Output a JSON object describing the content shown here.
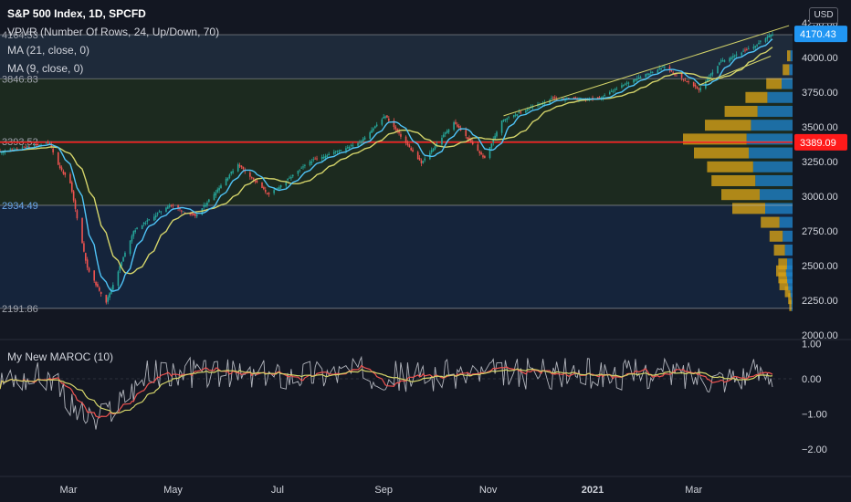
{
  "header": {
    "symbol_title": "S&P 500 Index, 1D, SPCFD",
    "indicators": [
      "VPVR (Number Of Rows, 24, Up/Down, 70)",
      "MA (21, close, 0)",
      "MA (9, close, 0)"
    ],
    "currency": "USD"
  },
  "oscillator": {
    "title": "My New MAROC (10)"
  },
  "colors": {
    "background": "#131722",
    "up": "#26a69a",
    "down": "#ef5350",
    "ma21": "#d4d46a",
    "ma9": "#4fc3f7",
    "hline_red": "#ff1a1a",
    "price_label_blue": "#2196f3",
    "vp_up": "#d4a017",
    "vp_down": "#1e7fc6"
  },
  "chart_data": [
    {
      "type": "candlestick",
      "title": "S&P 500 Index, 1D, SPCFD",
      "x_tick_labels": [
        "Mar",
        "May",
        "Jul",
        "Sep",
        "Nov",
        "2021",
        "Mar"
      ],
      "y_tick_labels": [
        "4250.00",
        "4000.00",
        "3750.00",
        "3500.00",
        "3250.00",
        "3000.00",
        "2750.00",
        "2500.00",
        "2250.00",
        "2000.00"
      ],
      "ylim": [
        2000,
        4280
      ],
      "last_price": "4170.43",
      "horizontal_line": "3389.09",
      "range_labels": [
        "4164.53",
        "3846.83",
        "3393.52",
        "2934.49",
        "2191.86"
      ],
      "close_path": [
        [
          "2020-01-21",
          3320
        ],
        [
          "2020-02-19",
          3386
        ],
        [
          "2020-02-24",
          3225
        ],
        [
          "2020-03-02",
          3090
        ],
        [
          "2020-03-12",
          2480
        ],
        [
          "2020-03-16",
          2386
        ],
        [
          "2020-03-23",
          2237
        ],
        [
          "2020-04-08",
          2750
        ],
        [
          "2020-04-29",
          2939
        ],
        [
          "2020-05-14",
          2852
        ],
        [
          "2020-06-08",
          3232
        ],
        [
          "2020-06-26",
          3009
        ],
        [
          "2020-07-20",
          3251
        ],
        [
          "2020-08-18",
          3389
        ],
        [
          "2020-09-02",
          3580
        ],
        [
          "2020-09-23",
          3237
        ],
        [
          "2020-10-12",
          3534
        ],
        [
          "2020-10-30",
          3270
        ],
        [
          "2020-11-09",
          3550
        ],
        [
          "2020-12-08",
          3702
        ],
        [
          "2021-01-04",
          3700
        ],
        [
          "2021-01-26",
          3849
        ],
        [
          "2021-02-12",
          3934
        ],
        [
          "2021-03-04",
          3768
        ],
        [
          "2021-03-17",
          3974
        ],
        [
          "2021-04-05",
          4077
        ],
        [
          "2021-04-15",
          4170
        ]
      ],
      "volume_profile": [
        {
          "price": 2212,
          "up": 0.02,
          "down": 0.01
        },
        {
          "price": 2262,
          "up": 0.03,
          "down": 0.01
        },
        {
          "price": 2312,
          "up": 0.05,
          "down": 0.02
        },
        {
          "price": 2362,
          "up": 0.08,
          "down": 0.04
        },
        {
          "price": 2412,
          "up": 0.08,
          "down": 0.05
        },
        {
          "price": 2462,
          "up": 0.09,
          "down": 0.06
        },
        {
          "price": 2512,
          "up": 0.08,
          "down": 0.05
        },
        {
          "price": 2612,
          "up": 0.1,
          "down": 0.07
        },
        {
          "price": 2712,
          "up": 0.12,
          "down": 0.09
        },
        {
          "price": 2812,
          "up": 0.17,
          "down": 0.12
        },
        {
          "price": 2912,
          "up": 0.3,
          "down": 0.25
        },
        {
          "price": 3012,
          "up": 0.35,
          "down": 0.3
        },
        {
          "price": 3112,
          "up": 0.4,
          "down": 0.34
        },
        {
          "price": 3212,
          "up": 0.42,
          "down": 0.36
        },
        {
          "price": 3312,
          "up": 0.5,
          "down": 0.4
        },
        {
          "price": 3412,
          "up": 0.58,
          "down": 0.42
        },
        {
          "price": 3512,
          "up": 0.42,
          "down": 0.38
        },
        {
          "price": 3612,
          "up": 0.3,
          "down": 0.32
        },
        {
          "price": 3712,
          "up": 0.2,
          "down": 0.23
        },
        {
          "price": 3812,
          "up": 0.14,
          "down": 0.1
        },
        {
          "price": 3912,
          "up": 0.06,
          "down": 0.03
        },
        {
          "price": 4012,
          "up": 0.03,
          "down": 0.02
        }
      ]
    },
    {
      "type": "line",
      "title": "My New MAROC (10)",
      "y_tick_labels": [
        "1.00",
        "0.00",
        "−1.00",
        "−2.00"
      ],
      "ylim": [
        -2.45,
        1.1
      ],
      "series": [],
      "trend_path": [
        [
          "2020-01-21",
          0.0
        ],
        [
          "2020-02-20",
          0.05
        ],
        [
          "2020-02-28",
          -0.6
        ],
        [
          "2020-03-16",
          -1.3
        ],
        [
          "2020-03-23",
          -1.0
        ],
        [
          "2020-04-15",
          0.1
        ],
        [
          "2020-05-15",
          0.2
        ],
        [
          "2020-06-15",
          0.05
        ],
        [
          "2020-07-15",
          0.15
        ],
        [
          "2020-08-15",
          0.2
        ],
        [
          "2020-09-15",
          0.05
        ],
        [
          "2020-10-15",
          0.12
        ],
        [
          "2020-11-15",
          0.15
        ],
        [
          "2020-12-15",
          0.15
        ],
        [
          "2021-01-15",
          0.12
        ],
        [
          "2021-02-15",
          0.15
        ],
        [
          "2021-03-15",
          0.05
        ],
        [
          "2021-04-15",
          0.18
        ]
      ]
    }
  ]
}
